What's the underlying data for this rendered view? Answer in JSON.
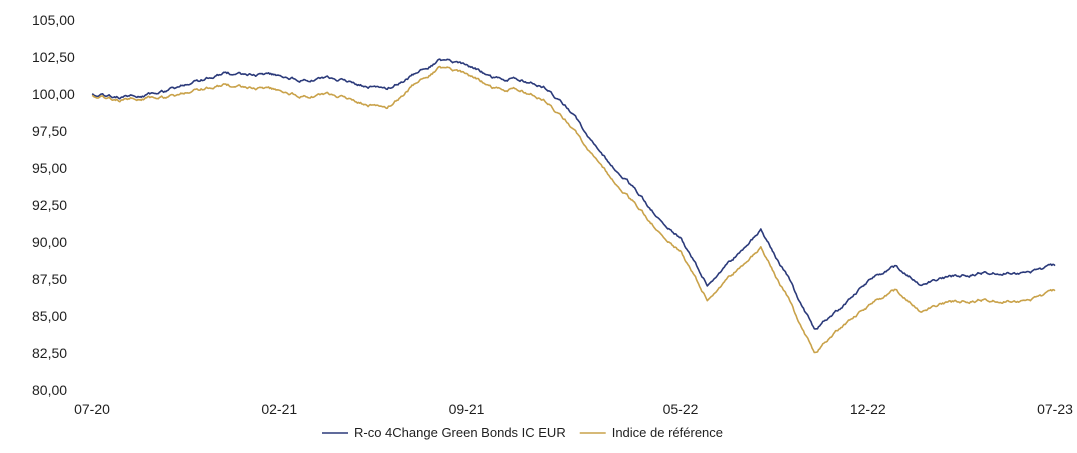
{
  "chart_data": {
    "type": "line",
    "ylim": [
      80,
      105
    ],
    "y_ticks": [
      "105,00",
      "102,50",
      "100,00",
      "97,50",
      "95,00",
      "92,50",
      "90,00",
      "87,50",
      "85,00",
      "82,50",
      "80,00"
    ],
    "y_tick_values": [
      105,
      102.5,
      100,
      97.5,
      95,
      92.5,
      90,
      87.5,
      85,
      82.5,
      80
    ],
    "x_ticks": [
      "07-20",
      "02-21",
      "09-21",
      "05-22",
      "12-22",
      "07-23"
    ],
    "grid": false,
    "legend_position": "bottom-center",
    "series": [
      {
        "name": "R-co 4Change Green Bonds IC EUR",
        "color": "#2b3a7a",
        "points": [
          [
            "07-20",
            100.0
          ],
          [
            "08-20",
            99.8
          ],
          [
            "09-20",
            99.9
          ],
          [
            "10-20",
            100.3
          ],
          [
            "11-20",
            100.9
          ],
          [
            "12-20",
            101.4
          ],
          [
            "01-21",
            101.3
          ],
          [
            "02-21",
            101.2
          ],
          [
            "03-21",
            100.9
          ],
          [
            "04-21",
            101.0
          ],
          [
            "05-21",
            100.6
          ],
          [
            "06-21",
            100.3
          ],
          [
            "07-21",
            101.3
          ],
          [
            "08-21",
            102.3
          ],
          [
            "09-21",
            102.0
          ],
          [
            "10-21",
            101.1
          ],
          [
            "11-21",
            101.0
          ],
          [
            "12-21",
            100.4
          ],
          [
            "01-22",
            98.7
          ],
          [
            "02-22",
            95.9
          ],
          [
            "03-22",
            94.2
          ],
          [
            "04-22",
            92.0
          ],
          [
            "05-22",
            90.3
          ],
          [
            "06-22",
            87.1
          ],
          [
            "07-22",
            88.9
          ],
          [
            "08-22",
            90.8
          ],
          [
            "09-22",
            87.6
          ],
          [
            "10-22",
            84.1
          ],
          [
            "11-22",
            85.6
          ],
          [
            "12-22",
            87.3
          ],
          [
            "01-23",
            88.3
          ],
          [
            "02-23",
            87.2
          ],
          [
            "03-23",
            87.6
          ],
          [
            "04-23",
            87.9
          ],
          [
            "05-23",
            88.0
          ],
          [
            "06-23",
            87.8
          ],
          [
            "07-23",
            88.4
          ]
        ]
      },
      {
        "name": "Indice de référence",
        "color": "#c9a24a",
        "points": [
          [
            "07-20",
            99.9
          ],
          [
            "08-20",
            99.6
          ],
          [
            "09-20",
            99.7
          ],
          [
            "10-20",
            99.8
          ],
          [
            "11-20",
            100.3
          ],
          [
            "12-20",
            100.6
          ],
          [
            "01-21",
            100.4
          ],
          [
            "02-21",
            100.2
          ],
          [
            "03-21",
            99.8
          ],
          [
            "04-21",
            99.9
          ],
          [
            "05-21",
            99.4
          ],
          [
            "06-21",
            99.0
          ],
          [
            "07-21",
            100.6
          ],
          [
            "08-21",
            101.8
          ],
          [
            "09-21",
            101.4
          ],
          [
            "10-21",
            100.4
          ],
          [
            "11-21",
            100.3
          ],
          [
            "12-21",
            99.5
          ],
          [
            "01-22",
            97.7
          ],
          [
            "02-22",
            95.1
          ],
          [
            "03-22",
            93.2
          ],
          [
            "04-22",
            91.1
          ],
          [
            "05-22",
            89.4
          ],
          [
            "06-22",
            86.1
          ],
          [
            "07-22",
            87.9
          ],
          [
            "08-22",
            89.6
          ],
          [
            "09-22",
            86.2
          ],
          [
            "10-22",
            82.5
          ],
          [
            "11-22",
            84.3
          ],
          [
            "12-22",
            85.6
          ],
          [
            "01-23",
            86.7
          ],
          [
            "02-23",
            85.4
          ],
          [
            "03-23",
            85.9
          ],
          [
            "04-23",
            86.1
          ],
          [
            "05-23",
            86.1
          ],
          [
            "06-23",
            85.9
          ],
          [
            "07-23",
            86.7
          ]
        ]
      }
    ]
  }
}
